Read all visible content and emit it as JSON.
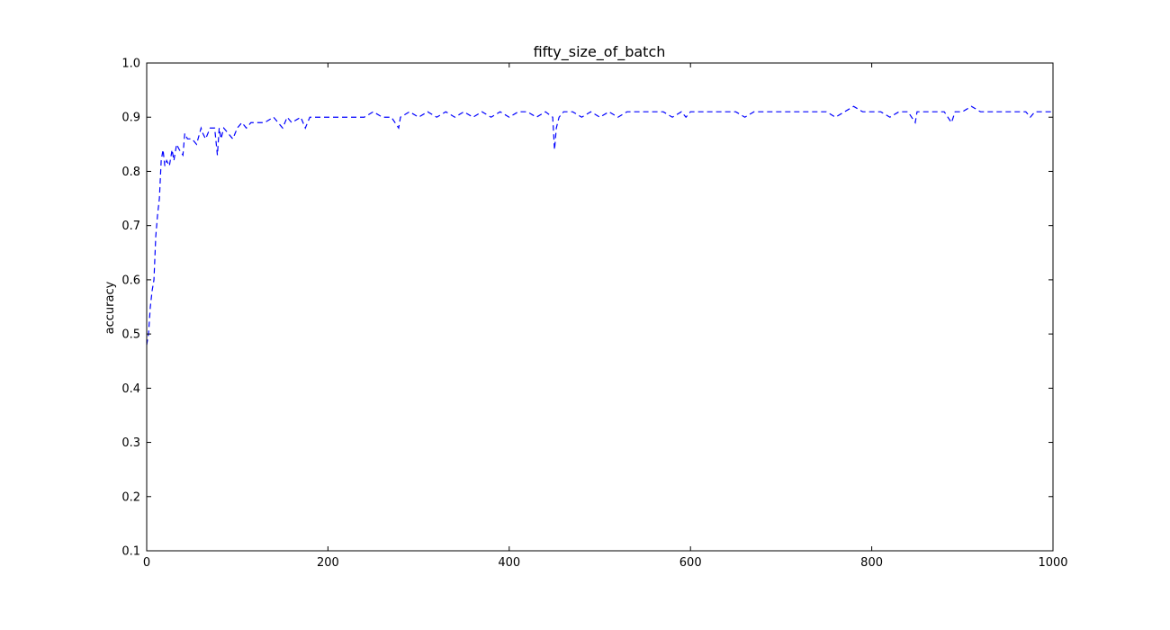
{
  "chart_data": {
    "type": "line",
    "title": "fifty_size_of_batch",
    "xlabel": "",
    "ylabel": "accuracy",
    "xlim": [
      0,
      1000
    ],
    "ylim": [
      0.1,
      1.0
    ],
    "xticks": [
      0,
      200,
      400,
      600,
      800,
      1000
    ],
    "xtick_labels": [
      "0",
      "200",
      "400",
      "600",
      "800",
      "1000"
    ],
    "yticks": [
      0.1,
      0.2,
      0.3,
      0.4,
      0.5,
      0.6,
      0.7,
      0.8,
      0.9,
      1.0
    ],
    "ytick_labels": [
      "0.1",
      "0.2",
      "0.3",
      "0.4",
      "0.5",
      "0.6",
      "0.7",
      "0.8",
      "0.9",
      "1.0"
    ],
    "grid": false,
    "series": [
      {
        "name": "accuracy",
        "color": "#0000ff",
        "linestyle": "dashed",
        "x": [
          0,
          2,
          4,
          6,
          8,
          10,
          12,
          14,
          16,
          18,
          20,
          22,
          25,
          28,
          30,
          33,
          36,
          40,
          42,
          45,
          50,
          55,
          60,
          62,
          65,
          70,
          75,
          78,
          80,
          82,
          85,
          90,
          95,
          100,
          105,
          110,
          115,
          120,
          130,
          140,
          150,
          155,
          160,
          170,
          175,
          180,
          190,
          200,
          210,
          220,
          230,
          240,
          250,
          260,
          270,
          278,
          280,
          290,
          300,
          310,
          320,
          330,
          340,
          350,
          360,
          370,
          380,
          390,
          400,
          410,
          420,
          430,
          440,
          448,
          450,
          452,
          455,
          460,
          470,
          480,
          490,
          500,
          510,
          520,
          530,
          540,
          550,
          560,
          570,
          580,
          590,
          595,
          600,
          610,
          620,
          630,
          640,
          650,
          660,
          670,
          680,
          690,
          700,
          710,
          720,
          730,
          740,
          750,
          760,
          770,
          780,
          790,
          800,
          810,
          820,
          830,
          840,
          848,
          850,
          852,
          860,
          870,
          880,
          888,
          890,
          892,
          900,
          910,
          920,
          930,
          940,
          950,
          960,
          970,
          975,
          980,
          990,
          1000
        ],
        "values": [
          0.48,
          0.5,
          0.55,
          0.58,
          0.6,
          0.68,
          0.72,
          0.75,
          0.82,
          0.84,
          0.81,
          0.82,
          0.81,
          0.84,
          0.82,
          0.85,
          0.84,
          0.83,
          0.87,
          0.86,
          0.86,
          0.85,
          0.88,
          0.87,
          0.86,
          0.88,
          0.88,
          0.83,
          0.88,
          0.86,
          0.88,
          0.87,
          0.86,
          0.88,
          0.89,
          0.88,
          0.89,
          0.89,
          0.89,
          0.9,
          0.88,
          0.9,
          0.89,
          0.9,
          0.88,
          0.9,
          0.9,
          0.9,
          0.9,
          0.9,
          0.9,
          0.9,
          0.91,
          0.9,
          0.9,
          0.88,
          0.9,
          0.91,
          0.9,
          0.91,
          0.9,
          0.91,
          0.9,
          0.91,
          0.9,
          0.91,
          0.9,
          0.91,
          0.9,
          0.91,
          0.91,
          0.9,
          0.91,
          0.9,
          0.84,
          0.88,
          0.9,
          0.91,
          0.91,
          0.9,
          0.91,
          0.9,
          0.91,
          0.9,
          0.91,
          0.91,
          0.91,
          0.91,
          0.91,
          0.9,
          0.91,
          0.9,
          0.91,
          0.91,
          0.91,
          0.91,
          0.91,
          0.91,
          0.9,
          0.91,
          0.91,
          0.91,
          0.91,
          0.91,
          0.91,
          0.91,
          0.91,
          0.91,
          0.9,
          0.91,
          0.92,
          0.91,
          0.91,
          0.91,
          0.9,
          0.91,
          0.91,
          0.89,
          0.91,
          0.91,
          0.91,
          0.91,
          0.91,
          0.89,
          0.9,
          0.91,
          0.91,
          0.92,
          0.91,
          0.91,
          0.91,
          0.91,
          0.91,
          0.91,
          0.9,
          0.91,
          0.91,
          0.91
        ]
      }
    ]
  }
}
